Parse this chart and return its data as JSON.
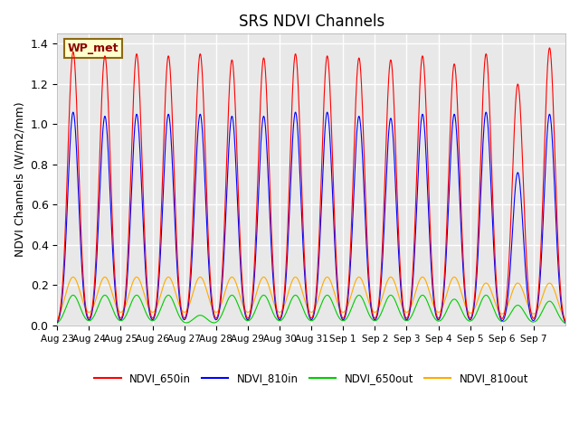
{
  "title": "SRS NDVI Channels",
  "ylabel": "NDVI Channels (W/m2/mm)",
  "annotation": "WP_met",
  "ylim": [
    0,
    1.45
  ],
  "yticks": [
    0.0,
    0.2,
    0.4,
    0.6,
    0.8,
    1.0,
    1.2,
    1.4
  ],
  "colors": {
    "NDVI_650in": "#ff0000",
    "NDVI_810in": "#0000ff",
    "NDVI_650out": "#00cc00",
    "NDVI_810out": "#ffaa00"
  },
  "legend_labels": [
    "NDVI_650in",
    "NDVI_810in",
    "NDVI_650out",
    "NDVI_810out"
  ],
  "xtick_labels": [
    "Aug 23",
    "Aug 24",
    "Aug 25",
    "Aug 26",
    "Aug 27",
    "Aug 28",
    "Aug 29",
    "Aug 30",
    "Aug 31",
    "Sep 1",
    "Sep 2",
    "Sep 3",
    "Sep 4",
    "Sep 5",
    "Sep 6",
    "Sep 7"
  ],
  "background_color": "#e8e8e8",
  "grid_color": "#ffffff",
  "num_days": 16,
  "peak_650in": [
    1.36,
    1.34,
    1.35,
    1.34,
    1.35,
    1.32,
    1.33,
    1.35,
    1.34,
    1.33,
    1.32,
    1.34,
    1.3,
    1.35,
    1.2,
    1.38
  ],
  "peak_810in": [
    1.06,
    1.04,
    1.05,
    1.05,
    1.05,
    1.04,
    1.04,
    1.06,
    1.06,
    1.04,
    1.03,
    1.05,
    1.05,
    1.06,
    0.76,
    1.05
  ],
  "peak_650out": [
    0.15,
    0.15,
    0.15,
    0.15,
    0.05,
    0.15,
    0.15,
    0.15,
    0.15,
    0.15,
    0.15,
    0.15,
    0.13,
    0.15,
    0.1,
    0.12
  ],
  "peak_810out": [
    0.24,
    0.24,
    0.24,
    0.24,
    0.24,
    0.24,
    0.24,
    0.24,
    0.24,
    0.24,
    0.24,
    0.24,
    0.24,
    0.21,
    0.21,
    0.21
  ]
}
